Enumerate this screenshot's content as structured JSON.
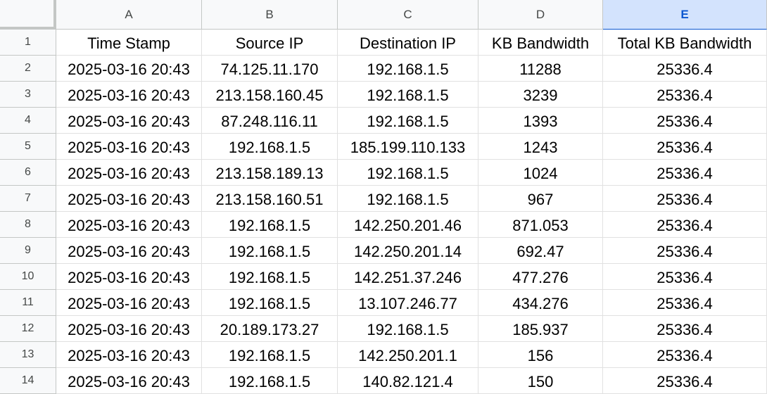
{
  "sheet": {
    "columns": [
      "A",
      "B",
      "C",
      "D",
      "E"
    ],
    "selected_column": "E",
    "rows": [
      {
        "num": "1",
        "cells": [
          "Time Stamp",
          "Source IP",
          "Destination IP",
          "KB Bandwidth",
          "Total KB Bandwidth"
        ]
      },
      {
        "num": "2",
        "cells": [
          "2025-03-16 20:43",
          "74.125.11.170",
          "192.168.1.5",
          "11288",
          "25336.4"
        ]
      },
      {
        "num": "3",
        "cells": [
          "2025-03-16 20:43",
          "213.158.160.45",
          "192.168.1.5",
          "3239",
          "25336.4"
        ]
      },
      {
        "num": "4",
        "cells": [
          "2025-03-16 20:43",
          "87.248.116.11",
          "192.168.1.5",
          "1393",
          "25336.4"
        ]
      },
      {
        "num": "5",
        "cells": [
          "2025-03-16 20:43",
          "192.168.1.5",
          "185.199.110.133",
          "1243",
          "25336.4"
        ]
      },
      {
        "num": "6",
        "cells": [
          "2025-03-16 20:43",
          "213.158.189.13",
          "192.168.1.5",
          "1024",
          "25336.4"
        ]
      },
      {
        "num": "7",
        "cells": [
          "2025-03-16 20:43",
          "213.158.160.51",
          "192.168.1.5",
          "967",
          "25336.4"
        ]
      },
      {
        "num": "8",
        "cells": [
          "2025-03-16 20:43",
          "192.168.1.5",
          "142.250.201.46",
          "871.053",
          "25336.4"
        ]
      },
      {
        "num": "9",
        "cells": [
          "2025-03-16 20:43",
          "192.168.1.5",
          "142.250.201.14",
          "692.47",
          "25336.4"
        ]
      },
      {
        "num": "10",
        "cells": [
          "2025-03-16 20:43",
          "192.168.1.5",
          "142.251.37.246",
          "477.276",
          "25336.4"
        ]
      },
      {
        "num": "11",
        "cells": [
          "2025-03-16 20:43",
          "192.168.1.5",
          "13.107.246.77",
          "434.276",
          "25336.4"
        ]
      },
      {
        "num": "12",
        "cells": [
          "2025-03-16 20:43",
          "20.189.173.27",
          "192.168.1.5",
          "185.937",
          "25336.4"
        ]
      },
      {
        "num": "13",
        "cells": [
          "2025-03-16 20:43",
          "192.168.1.5",
          "142.250.201.1",
          "156",
          "25336.4"
        ]
      },
      {
        "num": "14",
        "cells": [
          "2025-03-16 20:43",
          "192.168.1.5",
          "140.82.121.4",
          "150",
          "25336.4"
        ]
      }
    ]
  }
}
